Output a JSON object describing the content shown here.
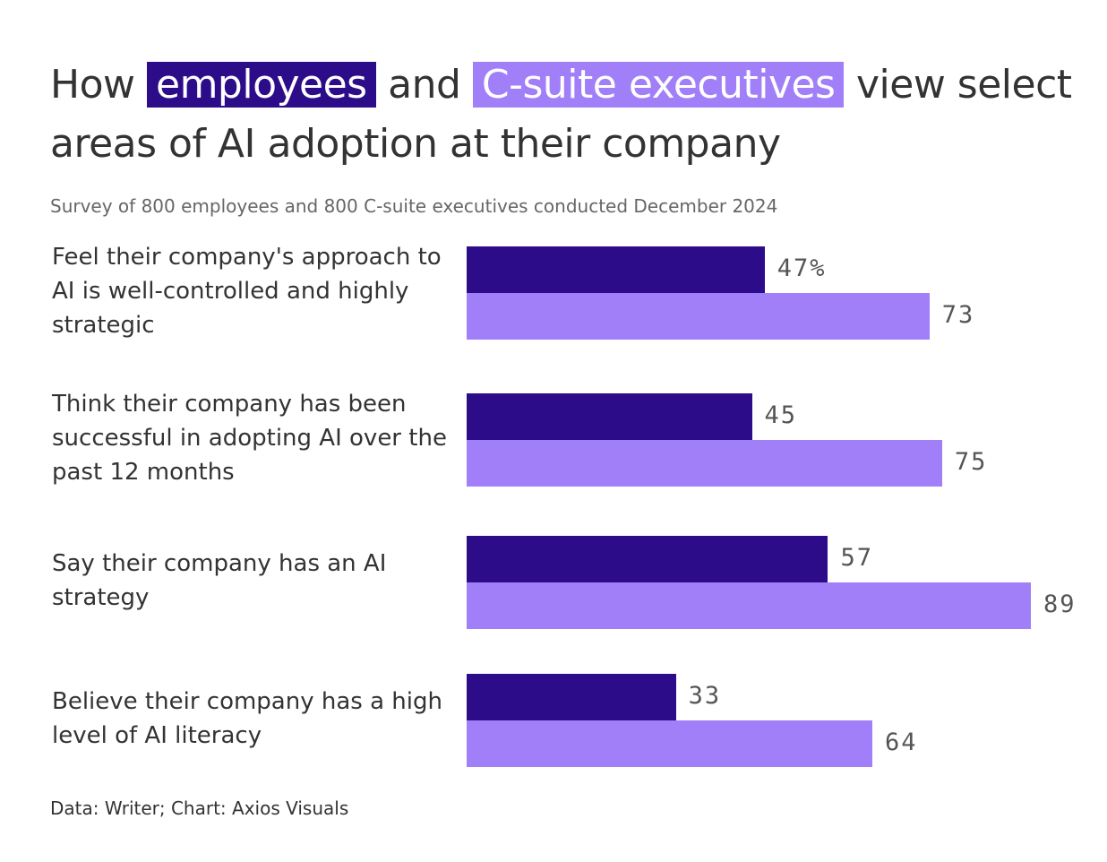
{
  "title": {
    "part1": "How",
    "highlight1": "employees",
    "part2": "and",
    "highlight2": "C-suite executives",
    "part3": "view select areas of AI adoption at their company"
  },
  "subtitle": "Survey of 800 employees and 800 C-suite executives conducted December 2024",
  "source": "Data: Writer; Chart: Axios Visuals",
  "colors": {
    "employees": "#2d0c8a",
    "executives": "#a07ff9"
  },
  "chart_data": {
    "type": "bar",
    "orientation": "horizontal",
    "unit": "%",
    "categories": [
      "Feel their company's approach to AI is well-controlled and highly strategic",
      "Think their company has been successful in adopting AI over the past 12 months",
      "Say their company has an AI strategy",
      "Believe their company has a high level of AI literacy"
    ],
    "series": [
      {
        "name": "employees",
        "values": [
          47,
          45,
          57,
          33
        ]
      },
      {
        "name": "C-suite executives",
        "values": [
          73,
          75,
          89,
          64
        ]
      }
    ],
    "value_labels": [
      [
        "47%",
        "73"
      ],
      [
        "45",
        "75"
      ],
      [
        "57",
        "89"
      ],
      [
        "33",
        "64"
      ]
    ],
    "xlim": [
      0,
      100
    ]
  }
}
